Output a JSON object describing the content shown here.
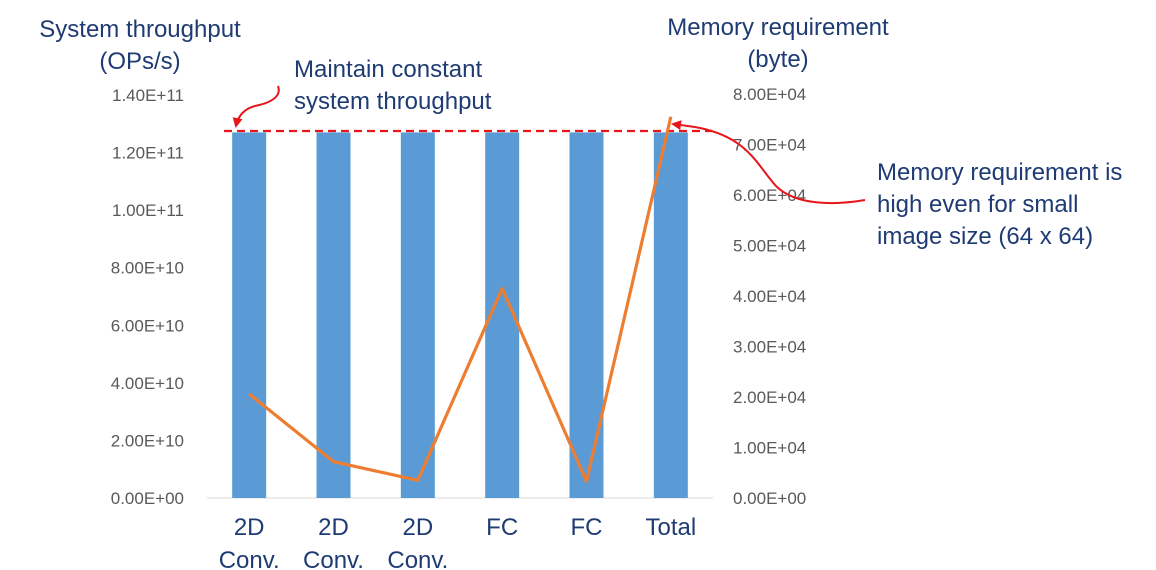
{
  "chart_data": {
    "type": "bar",
    "categories": [
      [
        "2D",
        "Conv."
      ],
      [
        "2D",
        "Conv."
      ],
      [
        "2D",
        "Conv."
      ],
      [
        "FC"
      ],
      [
        "FC"
      ],
      [
        "Total"
      ]
    ],
    "series": [
      {
        "name": "System throughput",
        "axis": "left",
        "type": "bar",
        "color": "#5b9bd5",
        "values": [
          127000000000.0,
          127000000000.0,
          127000000000.0,
          127000000000.0,
          127000000000.0,
          127000000000.0
        ]
      },
      {
        "name": "Memory requirement",
        "axis": "right",
        "type": "line",
        "color": "#ed7d31",
        "values": [
          20600,
          7200,
          3500,
          41500,
          3300,
          75500
        ]
      }
    ],
    "y_left": {
      "title": [
        "System throughput",
        "(OPs/s)"
      ],
      "ylim": [
        0,
        140000000000.0
      ],
      "ticks": [
        0,
        20000000000.0,
        40000000000.0,
        60000000000.0,
        80000000000.0,
        100000000000.0,
        120000000000.0,
        140000000000.0
      ],
      "tick_labels": [
        "0.00E+00",
        "2.00E+10",
        "4.00E+10",
        "6.00E+10",
        "8.00E+10",
        "1.00E+11",
        "1.20E+11",
        "1.40E+11"
      ]
    },
    "y_right": {
      "title": [
        "Memory requirement",
        "(byte)"
      ],
      "ylim": [
        0,
        80000
      ],
      "ticks": [
        0,
        10000,
        20000,
        30000,
        40000,
        50000,
        60000,
        70000,
        80000
      ],
      "tick_labels": [
        "0.00E+00",
        "1.00E+04",
        "2.00E+04",
        "3.00E+04",
        "4.00E+04",
        "5.00E+04",
        "6.00E+04",
        "7.00E+04",
        "8.00E+04"
      ]
    },
    "reference_line": {
      "value": 127500000000.0,
      "axis": "left",
      "style": "dashed",
      "color": "#e8151b"
    },
    "grid": false,
    "legend": "none"
  },
  "annotations": {
    "throughput_note": [
      "Maintain constant",
      "system throughput"
    ],
    "memory_note": [
      "Memory requirement is",
      "high even for small",
      "image size (64 x 64)"
    ],
    "arrow_color": "#e8151b"
  }
}
